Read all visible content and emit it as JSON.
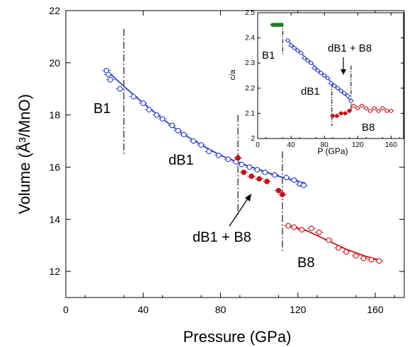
{
  "chart_data": [
    {
      "type": "scatter",
      "xlabel": "Pressure (GPa)",
      "ylabel": "Volume (Å³/MnO)",
      "xlim": [
        0,
        175
      ],
      "ylim": [
        11,
        22
      ],
      "xticks": [
        "0",
        "40",
        "80",
        "120",
        "160"
      ],
      "xtick_values": [
        0,
        40,
        80,
        120,
        160
      ],
      "yticks": [
        "12",
        "14",
        "16",
        "18",
        "20",
        "22"
      ],
      "ytick_values": [
        12,
        14,
        16,
        18,
        20,
        22
      ],
      "annotations": [
        "B1",
        "dB1",
        "dB1 + B8",
        "B8"
      ],
      "phase_boundaries": [
        30,
        89,
        112
      ],
      "series": [
        {
          "marker": "open-circle",
          "color": "#2b3fbf",
          "x": [
            21,
            22,
            23,
            28,
            35,
            40,
            43,
            47,
            50,
            55,
            58,
            61,
            66,
            70,
            74,
            79,
            84,
            88,
            91,
            95,
            99,
            103,
            108,
            114,
            118,
            121,
            123
          ],
          "y": [
            19.7,
            19.55,
            19.35,
            19.0,
            18.7,
            18.45,
            18.2,
            18.0,
            17.85,
            17.6,
            17.4,
            17.25,
            17.0,
            16.85,
            16.6,
            16.45,
            16.3,
            16.2,
            16.1,
            16.0,
            15.9,
            15.8,
            15.7,
            15.6,
            15.5,
            15.35,
            15.3
          ]
        },
        {
          "marker": "filled-circle",
          "color": "#c0141c",
          "x": [
            89,
            92,
            96,
            100,
            104,
            110,
            112
          ],
          "y": [
            16.35,
            15.8,
            15.65,
            15.55,
            15.45,
            15.1,
            14.95
          ]
        },
        {
          "marker": "open-circle",
          "color": "#c0141c",
          "x": [
            115,
            118,
            122,
            127,
            131,
            136,
            141,
            145,
            150,
            154,
            158,
            162
          ],
          "y": [
            13.75,
            13.7,
            13.6,
            13.65,
            13.5,
            13.2,
            12.9,
            12.75,
            12.6,
            12.5,
            12.45,
            12.4
          ]
        }
      ],
      "fits": [
        {
          "color": "#2b3fbf",
          "x": [
            21,
            30,
            40,
            50,
            60,
            70,
            80,
            90,
            100,
            110,
            120,
            124
          ],
          "y": [
            19.7,
            19.1,
            18.45,
            17.85,
            17.3,
            16.85,
            16.45,
            16.15,
            15.9,
            15.65,
            15.45,
            15.38
          ]
        },
        {
          "color": "#c0141c",
          "x": [
            115,
            125,
            135,
            145,
            155,
            162
          ],
          "y": [
            13.75,
            13.55,
            13.2,
            12.85,
            12.58,
            12.45
          ]
        }
      ]
    },
    {
      "type": "scatter",
      "xlabel": "P (GPa)",
      "ylabel": "c/a",
      "xlim": [
        0,
        175
      ],
      "ylim": [
        2,
        2.5
      ],
      "xticks": [
        "0",
        "40",
        "80",
        "120",
        "160"
      ],
      "xtick_values": [
        0,
        40,
        80,
        120,
        160
      ],
      "yticks": [
        "2",
        "2.1",
        "2.2",
        "2.3",
        "2.4",
        "2.5"
      ],
      "ytick_values": [
        2,
        2.1,
        2.2,
        2.3,
        2.4,
        2.5
      ],
      "annotations": [
        "B1",
        "dB1 + B8",
        "dB1",
        "B8"
      ],
      "phase_boundaries": [
        30,
        89,
        112
      ],
      "series": [
        {
          "marker": "filled-circle",
          "color": "#1e7d22",
          "x": [
            18,
            20,
            22,
            24,
            26,
            28
          ],
          "y": [
            2.452,
            2.452,
            2.452,
            2.452,
            2.452,
            2.452
          ]
        },
        {
          "marker": "open-circle",
          "color": "#2b3fbf",
          "x": [
            36,
            40,
            44,
            48,
            52,
            56,
            60,
            64,
            68,
            72,
            76,
            80,
            84,
            88,
            92,
            96,
            100,
            104,
            108,
            112
          ],
          "y": [
            2.39,
            2.37,
            2.36,
            2.35,
            2.34,
            2.32,
            2.31,
            2.3,
            2.28,
            2.27,
            2.26,
            2.25,
            2.24,
            2.22,
            2.21,
            2.2,
            2.19,
            2.18,
            2.17,
            2.15
          ]
        },
        {
          "marker": "filled-circle",
          "color": "#c0141c",
          "x": [
            90,
            95,
            100,
            105,
            110
          ],
          "y": [
            2.09,
            2.09,
            2.1,
            2.1,
            2.11
          ]
        },
        {
          "marker": "open-circle",
          "color": "#c0141c",
          "x": [
            115,
            120,
            125,
            130,
            135,
            140,
            145,
            150,
            155,
            160
          ],
          "y": [
            2.13,
            2.12,
            2.13,
            2.12,
            2.11,
            2.12,
            2.11,
            2.12,
            2.11,
            2.11
          ]
        }
      ],
      "fits": [
        {
          "color": "#2b3fbf",
          "x": [
            36,
            112
          ],
          "y": [
            2.39,
            2.15
          ]
        }
      ]
    }
  ],
  "colors": {
    "b1_dB1": "#2b3fbf",
    "b8": "#c0141c",
    "b1_inset": "#1e7d22",
    "axis": "#000000"
  }
}
